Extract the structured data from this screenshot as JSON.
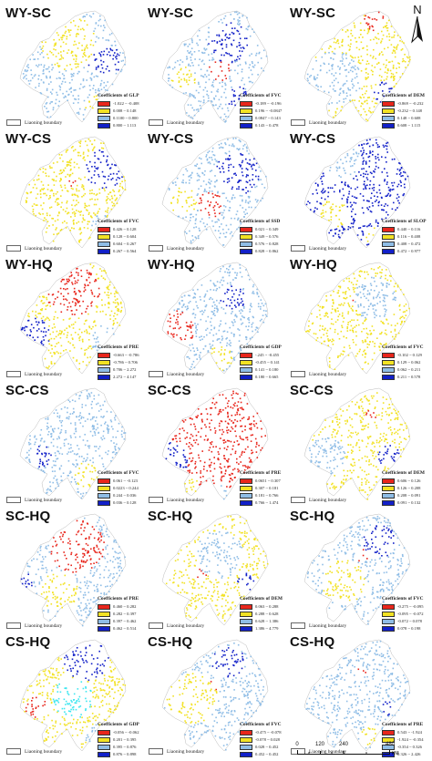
{
  "boundary_label": "Liaoning boundary",
  "north_label": "N",
  "scale": {
    "ticks": [
      "0",
      "120",
      "240",
      "480"
    ],
    "unit": "KM"
  },
  "colors": {
    "red": "#e8261c",
    "yellow": "#f2e224",
    "lightblue": "#8fbde6",
    "blue": "#1220c8",
    "cyan": "#3fe6f0"
  },
  "panels": [
    {
      "title": "WY-SC",
      "legend": {
        "title": "Coefficients of GLP",
        "classes": [
          "-1.022 ~ -0.408",
          "0.008 ~ 0.148",
          "0.1100 ~ 0.800",
          "0.800 ~ 1.113"
        ]
      }
    },
    {
      "title": "WY-SC",
      "legend": {
        "title": "Coefficients of FVC",
        "classes": [
          "-0.189 ~ -0.196",
          "0.196 ~ -0.0847",
          "0.0847 ~ 0.143",
          "0.143 ~ 0.478"
        ]
      }
    },
    {
      "title": "WY-SC",
      "legend": {
        "title": "Coefficients of DEM",
        "classes": [
          "-0.869 ~ -0.232",
          "-0.232 ~ 0.148",
          "0.148 ~ 0.608",
          "0.608 ~ 1.115"
        ]
      }
    },
    {
      "title": "WY-CS",
      "legend": {
        "title": "Coefficients of FVC",
        "classes": [
          "0.426 ~ 0.128",
          "0.128 ~ 0.604",
          "0.604 ~ 0.267",
          "0.267 ~ 0.564"
        ]
      }
    },
    {
      "title": "WY-CS",
      "legend": {
        "title": "Coefficients of SSD",
        "classes": [
          "0.021 ~ 0.349",
          "0.349 ~ 0.576",
          "0.576 ~ 0.828",
          "0.828 ~ 0.862"
        ]
      }
    },
    {
      "title": "WY-CS",
      "legend": {
        "title": "Coefficients of SLOP",
        "classes": [
          "0.440 ~ 0.116",
          "0.116 ~ 0.408",
          "0.408 ~ 0.472",
          "0.472 ~ 0.977"
        ]
      }
    },
    {
      "title": "WY-HQ",
      "legend": {
        "title": "Coefficients of PRE",
        "classes": [
          "-0.663 ~ -0.786",
          "-0.786 ~ 0.706",
          "0.706 ~ 2.272",
          "2.272 ~ 4.147"
        ]
      }
    },
    {
      "title": "WY-HQ",
      "legend": {
        "title": "Coefficients of GDP",
        "classes": [
          "-.245 ~ -0.455",
          "-0.455 ~ 0.141",
          "0.141 ~ 0.180",
          "0.180 ~ 0.665"
        ]
      }
    },
    {
      "title": "WY-HQ",
      "legend": {
        "title": "Coefficients of FVC",
        "classes": [
          "-0.102 ~ 0.129",
          "0.129 ~ 0.062",
          "0.062 ~ 0.211",
          "0.211 ~ 0.578"
        ]
      }
    },
    {
      "title": "SC-CS",
      "legend": {
        "title": "Coefficients of FVC",
        "classes": [
          "0.061 ~ -0.123",
          "0.0223 ~ 0.244",
          "0.244 ~ 0.036",
          "0.036 ~ 0.128"
        ]
      }
    },
    {
      "title": "SC-CS",
      "legend": {
        "title": "Coefficients of PRE",
        "classes": [
          "0.0651 ~ 0.307",
          "0.307 ~ 0.181",
          "0.181 ~ 0.766",
          "0.766 ~ 1.474"
        ]
      }
    },
    {
      "title": "SC-CS",
      "legend": {
        "title": "Coefficients of DEM",
        "classes": [
          "0.606 ~ 0.126",
          "0.126 ~ 0.208",
          "0.208 ~ 0.091",
          "0.091 ~ 0.132"
        ]
      }
    },
    {
      "title": "SC-HQ",
      "legend": {
        "title": "Coefficients of PRE",
        "classes": [
          "0.460 ~ 0.282",
          "0.282 ~ 0.397",
          "0.397 ~ 0.462",
          "0.462 ~ 0.514"
        ]
      }
    },
    {
      "title": "SC-HQ",
      "legend": {
        "title": "Coefficients of DEM",
        "classes": [
          "0.063 ~ 0.288",
          "0.288 ~ 0.628",
          "0.628 ~ 1.386",
          "1.386 ~ 4.779"
        ]
      }
    },
    {
      "title": "SC-HQ",
      "legend": {
        "title": "Coefficients of FVC",
        "classes": [
          "-0.275 ~ -0.095",
          "-0.095 ~ -0.072",
          "-0.072 ~ 0.078",
          "0.078 ~ 0.198"
        ]
      }
    },
    {
      "title": "CS-HQ",
      "legend": {
        "title": "Coefficients of GDP",
        "classes": [
          "-0.056 ~ -0.062",
          "0.201 ~ 0.395",
          "0.395 ~ 0.876",
          "0.876 ~ 0.898"
        ]
      }
    },
    {
      "title": "CS-HQ",
      "legend": {
        "title": "Coefficients of FVC",
        "classes": [
          "-0.475 ~ -0.078",
          "-0.078 ~ 0.028",
          "0.028 ~ 0.452",
          "0.452 ~ 0.452"
        ]
      }
    },
    {
      "title": "CS-HQ",
      "legend": {
        "title": "Coefficients of PRE",
        "classes": [
          "0.543 ~ -1.924",
          "-1.924 ~ -0.354",
          "-0.354 ~ 0.326",
          "0.326 ~ 2.426"
        ]
      }
    }
  ]
}
